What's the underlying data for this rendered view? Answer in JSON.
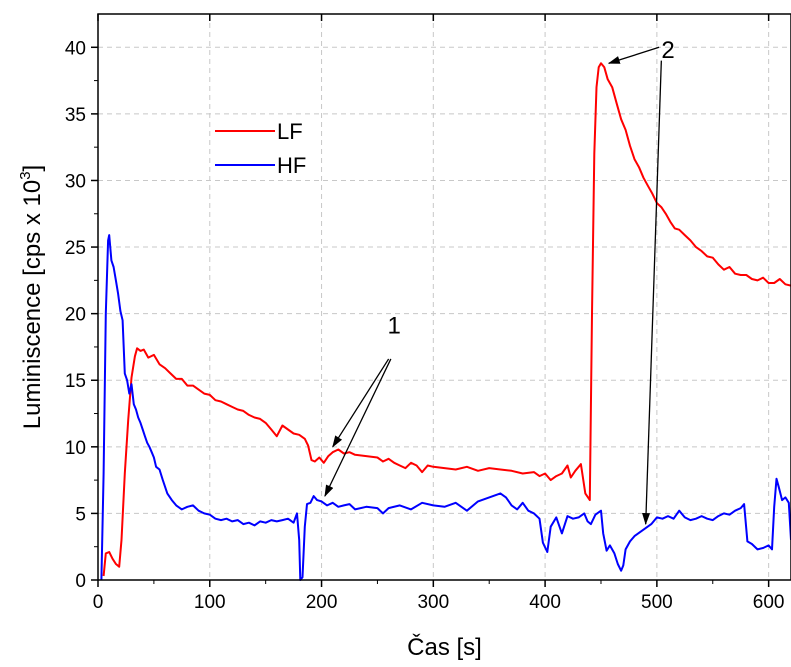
{
  "chart_data": {
    "type": "line",
    "xlabel": "Čas [s]",
    "ylabel_main": "Luminiscence [cps x 10",
    "ylabel_sup": "3",
    "ylabel_end": "]",
    "xlim": [
      0,
      620
    ],
    "ylim": [
      0,
      42.5
    ],
    "xticks": [
      0,
      100,
      200,
      300,
      400,
      500,
      600
    ],
    "yticks": [
      0,
      5,
      10,
      15,
      20,
      25,
      30,
      35,
      40
    ],
    "grid": true,
    "legend": {
      "placement": "upper-left"
    },
    "series": [
      {
        "name": "LF",
        "color": "#ff0000",
        "points": [
          [
            5,
            0.3
          ],
          [
            7,
            2
          ],
          [
            10,
            2.1
          ],
          [
            13,
            1.6
          ],
          [
            16,
            1.2
          ],
          [
            19,
            1
          ],
          [
            21,
            3
          ],
          [
            24,
            8
          ],
          [
            27,
            12
          ],
          [
            30,
            15.2
          ],
          [
            33,
            16.8
          ],
          [
            35,
            17.4
          ],
          [
            38,
            17.2
          ],
          [
            41,
            17.3
          ],
          [
            45,
            16.7
          ],
          [
            50,
            16.9
          ],
          [
            55,
            16.2
          ],
          [
            60,
            15.9
          ],
          [
            65,
            15.5
          ],
          [
            70,
            15.1
          ],
          [
            75,
            15.1
          ],
          [
            80,
            14.6
          ],
          [
            85,
            14.6
          ],
          [
            90,
            14.3
          ],
          [
            95,
            14.0
          ],
          [
            100,
            13.9
          ],
          [
            105,
            13.5
          ],
          [
            110,
            13.4
          ],
          [
            115,
            13.2
          ],
          [
            120,
            13.0
          ],
          [
            125,
            12.8
          ],
          [
            130,
            12.7
          ],
          [
            135,
            12.4
          ],
          [
            140,
            12.2
          ],
          [
            145,
            12.1
          ],
          [
            150,
            11.8
          ],
          [
            155,
            11.3
          ],
          [
            160,
            10.8
          ],
          [
            165,
            11.6
          ],
          [
            170,
            11.3
          ],
          [
            175,
            11.0
          ],
          [
            180,
            10.9
          ],
          [
            185,
            10.6
          ],
          [
            188,
            10.1
          ],
          [
            191,
            9.0
          ],
          [
            194,
            8.9
          ],
          [
            198,
            9.2
          ],
          [
            202,
            8.8
          ],
          [
            206,
            9.3
          ],
          [
            210,
            9.6
          ],
          [
            215,
            9.8
          ],
          [
            220,
            9.5
          ],
          [
            225,
            9.6
          ],
          [
            230,
            9.4
          ],
          [
            240,
            9.3
          ],
          [
            250,
            9.2
          ],
          [
            255,
            8.9
          ],
          [
            260,
            9.1
          ],
          [
            265,
            8.8
          ],
          [
            270,
            8.6
          ],
          [
            275,
            8.4
          ],
          [
            280,
            8.8
          ],
          [
            285,
            8.6
          ],
          [
            290,
            8.1
          ],
          [
            295,
            8.6
          ],
          [
            300,
            8.5
          ],
          [
            310,
            8.4
          ],
          [
            320,
            8.3
          ],
          [
            330,
            8.5
          ],
          [
            340,
            8.2
          ],
          [
            350,
            8.4
          ],
          [
            360,
            8.3
          ],
          [
            370,
            8.2
          ],
          [
            380,
            8.0
          ],
          [
            390,
            8.1
          ],
          [
            395,
            7.8
          ],
          [
            400,
            8.0
          ],
          [
            405,
            7.5
          ],
          [
            410,
            7.8
          ],
          [
            415,
            8.0
          ],
          [
            420,
            8.6
          ],
          [
            423,
            7.7
          ],
          [
            427,
            8.2
          ],
          [
            432,
            8.7
          ],
          [
            436,
            6.5
          ],
          [
            440,
            6.0
          ],
          [
            442,
            20
          ],
          [
            444,
            32
          ],
          [
            446,
            37
          ],
          [
            448,
            38.5
          ],
          [
            450,
            38.8
          ],
          [
            453,
            38.5
          ],
          [
            456,
            37.6
          ],
          [
            460,
            37.0
          ],
          [
            464,
            35.8
          ],
          [
            468,
            34.6
          ],
          [
            472,
            33.8
          ],
          [
            476,
            32.6
          ],
          [
            480,
            31.6
          ],
          [
            484,
            31.0
          ],
          [
            488,
            30.2
          ],
          [
            492,
            29.6
          ],
          [
            496,
            29.0
          ],
          [
            500,
            28.3
          ],
          [
            504,
            28.0
          ],
          [
            508,
            27.5
          ],
          [
            512,
            26.9
          ],
          [
            516,
            26.4
          ],
          [
            520,
            26.3
          ],
          [
            525,
            25.9
          ],
          [
            530,
            25.5
          ],
          [
            535,
            25.0
          ],
          [
            540,
            24.7
          ],
          [
            545,
            24.3
          ],
          [
            550,
            24.2
          ],
          [
            555,
            23.7
          ],
          [
            560,
            23.3
          ],
          [
            565,
            23.5
          ],
          [
            570,
            23.0
          ],
          [
            575,
            22.9
          ],
          [
            580,
            22.9
          ],
          [
            585,
            22.6
          ],
          [
            590,
            22.5
          ],
          [
            595,
            22.7
          ],
          [
            600,
            22.3
          ],
          [
            605,
            22.3
          ],
          [
            610,
            22.6
          ],
          [
            615,
            22.2
          ],
          [
            620,
            22.1
          ]
        ]
      },
      {
        "name": "HF",
        "color": "#0000ff",
        "points": [
          [
            3,
            0
          ],
          [
            5,
            8
          ],
          [
            7,
            20
          ],
          [
            9,
            25.5
          ],
          [
            10,
            25.9
          ],
          [
            12,
            24.0
          ],
          [
            14,
            23.5
          ],
          [
            16,
            22.5
          ],
          [
            18,
            21.5
          ],
          [
            20,
            20.2
          ],
          [
            22,
            19.5
          ],
          [
            24,
            15.5
          ],
          [
            26,
            15.0
          ],
          [
            28,
            14.0
          ],
          [
            30,
            14.7
          ],
          [
            32,
            13.2
          ],
          [
            34,
            12.8
          ],
          [
            36,
            12.2
          ],
          [
            38,
            11.8
          ],
          [
            40,
            11.3
          ],
          [
            42,
            10.8
          ],
          [
            44,
            10.3
          ],
          [
            46,
            10.0
          ],
          [
            48,
            9.6
          ],
          [
            50,
            9.2
          ],
          [
            52,
            8.5
          ],
          [
            55,
            8.3
          ],
          [
            58,
            7.5
          ],
          [
            62,
            6.5
          ],
          [
            66,
            6.0
          ],
          [
            70,
            5.6
          ],
          [
            75,
            5.3
          ],
          [
            80,
            5.5
          ],
          [
            85,
            5.6
          ],
          [
            90,
            5.2
          ],
          [
            95,
            5.0
          ],
          [
            100,
            4.9
          ],
          [
            105,
            4.6
          ],
          [
            110,
            4.5
          ],
          [
            115,
            4.6
          ],
          [
            120,
            4.4
          ],
          [
            125,
            4.5
          ],
          [
            130,
            4.2
          ],
          [
            135,
            4.3
          ],
          [
            140,
            4.1
          ],
          [
            145,
            4.4
          ],
          [
            150,
            4.3
          ],
          [
            155,
            4.5
          ],
          [
            160,
            4.4
          ],
          [
            165,
            4.5
          ],
          [
            170,
            4.6
          ],
          [
            175,
            4.3
          ],
          [
            178,
            5.0
          ],
          [
            180,
            3.0
          ],
          [
            181,
            0
          ],
          [
            183,
            0.2
          ],
          [
            185,
            4.0
          ],
          [
            187,
            5.7
          ],
          [
            190,
            5.8
          ],
          [
            193,
            6.3
          ],
          [
            196,
            6.0
          ],
          [
            200,
            5.9
          ],
          [
            205,
            5.6
          ],
          [
            210,
            5.8
          ],
          [
            215,
            5.5
          ],
          [
            220,
            5.6
          ],
          [
            225,
            5.7
          ],
          [
            230,
            5.3
          ],
          [
            240,
            5.5
          ],
          [
            250,
            5.4
          ],
          [
            255,
            5.0
          ],
          [
            260,
            5.4
          ],
          [
            270,
            5.6
          ],
          [
            280,
            5.3
          ],
          [
            290,
            5.8
          ],
          [
            300,
            5.6
          ],
          [
            310,
            5.5
          ],
          [
            320,
            5.8
          ],
          [
            330,
            5.2
          ],
          [
            340,
            5.9
          ],
          [
            350,
            6.2
          ],
          [
            360,
            6.5
          ],
          [
            365,
            6.2
          ],
          [
            370,
            5.6
          ],
          [
            375,
            5.3
          ],
          [
            380,
            5.8
          ],
          [
            385,
            5.2
          ],
          [
            390,
            5.0
          ],
          [
            395,
            4.6
          ],
          [
            398,
            2.8
          ],
          [
            402,
            2.1
          ],
          [
            405,
            4.0
          ],
          [
            410,
            4.7
          ],
          [
            415,
            3.5
          ],
          [
            420,
            4.8
          ],
          [
            425,
            4.6
          ],
          [
            430,
            4.7
          ],
          [
            435,
            5.0
          ],
          [
            438,
            4.4
          ],
          [
            441,
            4.2
          ],
          [
            445,
            4.9
          ],
          [
            450,
            5.2
          ],
          [
            452,
            3.5
          ],
          [
            455,
            2.2
          ],
          [
            458,
            2.6
          ],
          [
            462,
            2.0
          ],
          [
            465,
            1.2
          ],
          [
            468,
            0.7
          ],
          [
            470,
            1.1
          ],
          [
            472,
            2.3
          ],
          [
            476,
            2.9
          ],
          [
            480,
            3.3
          ],
          [
            485,
            3.6
          ],
          [
            490,
            3.9
          ],
          [
            495,
            4.2
          ],
          [
            500,
            4.7
          ],
          [
            505,
            4.6
          ],
          [
            510,
            4.8
          ],
          [
            515,
            4.6
          ],
          [
            520,
            5.2
          ],
          [
            525,
            4.7
          ],
          [
            530,
            4.5
          ],
          [
            535,
            4.6
          ],
          [
            540,
            4.8
          ],
          [
            545,
            4.6
          ],
          [
            550,
            4.5
          ],
          [
            555,
            4.8
          ],
          [
            560,
            5.0
          ],
          [
            565,
            4.9
          ],
          [
            570,
            5.2
          ],
          [
            575,
            5.4
          ],
          [
            578,
            5.7
          ],
          [
            581,
            2.9
          ],
          [
            585,
            2.7
          ],
          [
            590,
            2.3
          ],
          [
            595,
            2.4
          ],
          [
            600,
            2.6
          ],
          [
            603,
            2.3
          ],
          [
            605,
            5.5
          ],
          [
            607,
            7.6
          ],
          [
            609,
            7.0
          ],
          [
            612,
            6.0
          ],
          [
            615,
            6.2
          ],
          [
            618,
            5.8
          ],
          [
            620,
            3.0
          ]
        ]
      }
    ],
    "annotations": [
      {
        "label": "1",
        "text_at": [
          265,
          18.5
        ],
        "arrows": [
          {
            "from": [
              260,
              16.6
            ],
            "to": [
              210,
              10.0
            ]
          },
          {
            "from": [
              262,
              16.6
            ],
            "to": [
              203,
              6.3
            ]
          }
        ]
      },
      {
        "label": "2",
        "text_at": [
          510,
          39.2
        ],
        "arrows": [
          {
            "from": [
              502,
              40.0
            ],
            "to": [
              457,
              38.8
            ]
          },
          {
            "from": [
              504,
              39.0
            ],
            "to": [
              490,
              4.2
            ]
          }
        ]
      }
    ]
  }
}
